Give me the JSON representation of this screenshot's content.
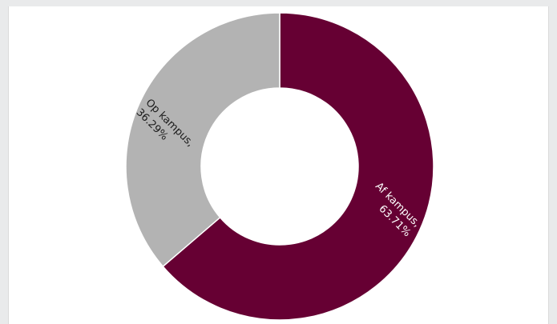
{
  "chart_data": {
    "type": "pie",
    "donut": true,
    "title": "",
    "start_angle_deg": 0,
    "slices": [
      {
        "label": "Af kampus,",
        "value": 63.71,
        "value_text": "63.71%",
        "color": "#660033",
        "label_color": "#ffffff"
      },
      {
        "label": "Op kampus,",
        "value": 36.29,
        "value_text": "36.29%",
        "color": "#b3b3b3",
        "label_color": "#1a1a1a"
      }
    ]
  },
  "colors": {
    "background": "#e9eaeb",
    "card": "#ffffff",
    "slice_border": "#ffffff"
  }
}
